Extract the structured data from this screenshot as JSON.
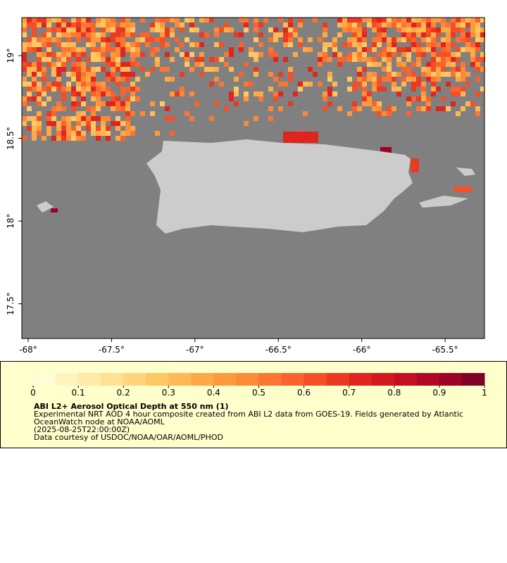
{
  "map": {
    "xlim": [
      -68.038,
      -65.264
    ],
    "ylim": [
      17.29,
      19.23
    ],
    "xticks": [
      {
        "value": -68,
        "label": "-68°"
      },
      {
        "value": -67.5,
        "label": "-67.5°"
      },
      {
        "value": -67,
        "label": "-67°"
      },
      {
        "value": -66.5,
        "label": "-66.5°"
      },
      {
        "value": -66,
        "label": "-66°"
      },
      {
        "value": -65.5,
        "label": "-65.5°"
      }
    ],
    "yticks": [
      {
        "value": 17.5,
        "label": "17.5°"
      },
      {
        "value": 18,
        "label": "18°"
      },
      {
        "value": 18.5,
        "label": "18.5°"
      },
      {
        "value": 19,
        "label": "19°"
      }
    ]
  },
  "colorbar": {
    "range": [
      0,
      1
    ],
    "ticks": [
      0,
      0.1,
      0.2,
      0.3,
      0.4,
      0.5,
      0.6,
      0.7,
      0.8,
      0.9,
      1
    ],
    "colors": [
      "#fffcd6",
      "#fff3c0",
      "#ffeaa8",
      "#fee192",
      "#fed57c",
      "#fec866",
      "#feb954",
      "#fea947",
      "#fd9a3e",
      "#fd8a37",
      "#fc7632",
      "#fa632d",
      "#f44f27",
      "#ea3a22",
      "#e0251f",
      "#d31920",
      "#c40f23",
      "#b20826",
      "#9e0227",
      "#800026"
    ]
  },
  "caption": {
    "title": "ABI L2+ Aerosol Optical Depth at 550 nm (1)",
    "lines": [
      "Experimental NRT AOD 4 hour composite created from ABI L2 data from GOES-19. Fields generated by Atlantic",
      "OceanWatch node at NOAA/AOML",
      "(2025-08-25T22:00:00Z)",
      "Data courtesy of USDOC/NOAA/OAR/AOML/PHOD"
    ]
  }
}
